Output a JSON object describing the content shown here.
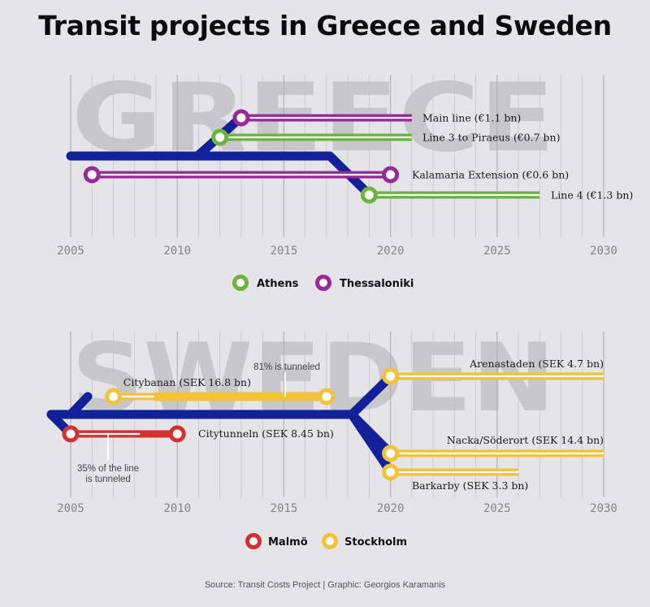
{
  "title": "Transit projects in Greece and Sweden",
  "source": "Source: Transit Costs Project | Graphic: Georgios Karamanis",
  "colors": {
    "main_line": "#12209a",
    "Athens": "#6db33f",
    "Thessaloniki": "#98299a",
    "Malmö": "#d3312f",
    "Stockholm": "#f2c23a",
    "grid": "#c4c4c8"
  },
  "chart_data": [
    {
      "type": "timeline",
      "country": "GREECE",
      "xlim": [
        2005,
        2030
      ],
      "xticks": [
        "2005",
        "2010",
        "2015",
        "2020",
        "2025",
        "2030"
      ],
      "grid": true,
      "legend_placement": "bottom",
      "legend": [
        {
          "name": "Athens",
          "color": "#6db33f"
        },
        {
          "name": "Thessaloniki",
          "color": "#98299a"
        }
      ],
      "projects": [
        {
          "label": "Main line (€1.1 bn)",
          "city": "Thessaloniki",
          "start": 2013,
          "end": 2021
        },
        {
          "label": "Line 3 to Piraeus (€0.7 bn)",
          "city": "Athens",
          "start": 2012,
          "end": 2021
        },
        {
          "label": "Kalamaria Extension (€0.6 bn)",
          "city": "Thessaloniki",
          "start": 2006,
          "end": 2020
        },
        {
          "label": "Line 4 (€1.3 bn)",
          "city": "Athens",
          "start": 2019,
          "end": 2027
        }
      ]
    },
    {
      "type": "timeline",
      "country": "SWEDEN",
      "xlim": [
        2005,
        2030
      ],
      "xticks": [
        "2005",
        "2010",
        "2015",
        "2020",
        "2025",
        "2030"
      ],
      "grid": true,
      "legend_placement": "bottom",
      "legend": [
        {
          "name": "Malmö",
          "color": "#d3312f"
        },
        {
          "name": "Stockholm",
          "color": "#f2c23a"
        }
      ],
      "projects": [
        {
          "label": "Arenastaden (SEK 4.7 bn)",
          "city": "Stockholm",
          "start": 2020,
          "end": 2030
        },
        {
          "label": "Citybanan (SEK 16.8 bn)",
          "city": "Stockholm",
          "start": 2007,
          "end": 2017,
          "tunneled_share": 0.81,
          "note": "81% is tunneled"
        },
        {
          "label": "Citytunneln (SEK 8.45 bn)",
          "city": "Malmö",
          "start": 2005,
          "end": 2010,
          "tunneled_share": 0.35,
          "note": "35% of the line\nis tunneled"
        },
        {
          "label": "Nacka/Söderort (SEK 14.4 bn)",
          "city": "Stockholm",
          "start": 2020,
          "end": 2030
        },
        {
          "label": "Barkarby (SEK 3.3 bn)",
          "city": "Stockholm",
          "start": 2020,
          "end": 2026
        }
      ]
    }
  ]
}
